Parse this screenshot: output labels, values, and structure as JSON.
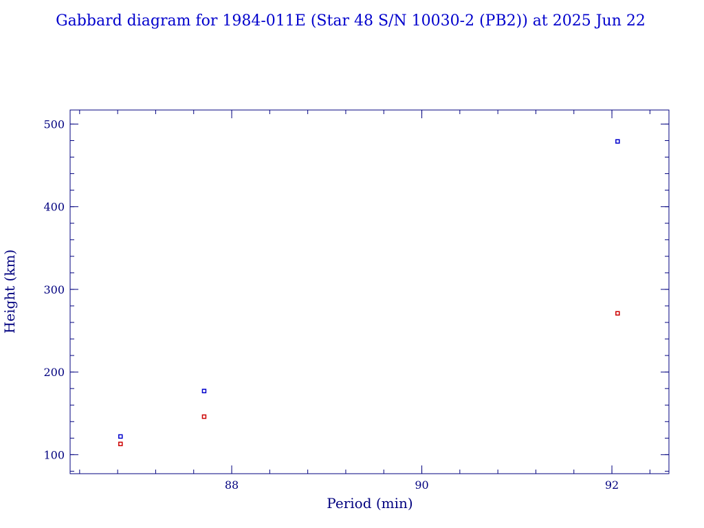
{
  "chart_data": {
    "type": "scatter",
    "title": "Gabbard diagram for 1984-011E (Star 48 S/N 10030-2 (PB2)) at 2025 Jun 22",
    "xlabel": "Period (min)",
    "ylabel": "Height (km)",
    "xlim": [
      86.3,
      92.6
    ],
    "ylim": [
      77,
      517
    ],
    "x_ticks": [
      88,
      90,
      92
    ],
    "x_tick_labels": [
      "88",
      "90",
      "92"
    ],
    "x_minor_step": 0.4,
    "y_ticks": [
      100,
      200,
      300,
      400,
      500
    ],
    "y_tick_labels": [
      "100",
      "200",
      "300",
      "400",
      "500"
    ],
    "y_minor_step": 20,
    "grid": false,
    "series": [
      {
        "color": "#0000cc",
        "points": [
          {
            "x": 86.83,
            "y": 122
          },
          {
            "x": 87.71,
            "y": 177
          },
          {
            "x": 92.06,
            "y": 479
          }
        ]
      },
      {
        "color": "#cc0000",
        "points": [
          {
            "x": 86.83,
            "y": 113
          },
          {
            "x": 87.71,
            "y": 146
          },
          {
            "x": 92.06,
            "y": 271
          }
        ]
      }
    ]
  },
  "colors": {
    "axis": "#00007f",
    "text": "#00007f",
    "title": "#0000cc"
  }
}
